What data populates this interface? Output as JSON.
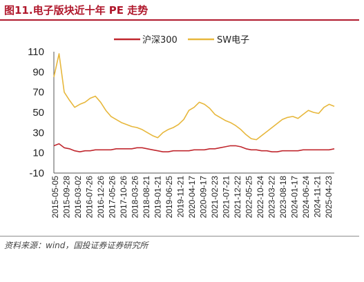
{
  "figure": {
    "title": "图11.电子版块近十年 PE 走势",
    "source": "资料来源：wind，国投证券证券研究所"
  },
  "chart_data": {
    "type": "line",
    "title": "电子版块近十年 PE 走势",
    "xlabel": "",
    "ylabel": "",
    "ylim": [
      -10,
      110
    ],
    "yticks": [
      -10,
      10,
      30,
      50,
      70,
      90,
      110
    ],
    "grid": false,
    "legend": "top-center",
    "x_tick_labels": [
      "2015-05-05",
      "2015-09-28",
      "2016-03-02",
      "2016-07-26",
      "2016-12-26",
      "2017-05-26",
      "2017-10-26",
      "2018-03-26",
      "2018-08-21",
      "2019-01-21",
      "2019-06-25",
      "2019-11-21",
      "2020-04-17",
      "2020-09-17",
      "2021-02-23",
      "2021-07-21",
      "2021-12-22",
      "2022-05-25",
      "2022-10-24",
      "2023-03-22",
      "2023-08-18",
      "2024-01-17",
      "2024-06-24",
      "2024-11-21",
      "2025-04-23"
    ],
    "series": [
      {
        "name": "沪深300",
        "color": "#c0262d",
        "values": [
          17,
          19,
          15,
          14,
          12,
          11,
          12,
          12,
          13,
          13,
          13,
          13,
          14,
          14,
          14,
          14,
          15,
          15,
          14,
          13,
          12,
          11,
          11,
          12,
          12,
          12,
          12,
          13,
          13,
          13,
          14,
          14,
          15,
          16,
          17,
          17,
          16,
          14,
          13,
          13,
          12,
          12,
          11,
          11,
          12,
          12,
          12,
          12,
          13,
          13,
          13,
          13,
          13,
          13,
          14
        ]
      },
      {
        "name": "SW电子",
        "color": "#e7b73b",
        "values": [
          85,
          108,
          70,
          62,
          55,
          58,
          60,
          64,
          66,
          60,
          52,
          46,
          43,
          40,
          38,
          36,
          35,
          33,
          30,
          27,
          25,
          30,
          33,
          35,
          38,
          43,
          52,
          55,
          60,
          58,
          54,
          48,
          45,
          42,
          40,
          37,
          33,
          28,
          24,
          23,
          27,
          31,
          35,
          39,
          43,
          45,
          46,
          44,
          48,
          52,
          50,
          49,
          55,
          58,
          56
        ]
      }
    ]
  }
}
